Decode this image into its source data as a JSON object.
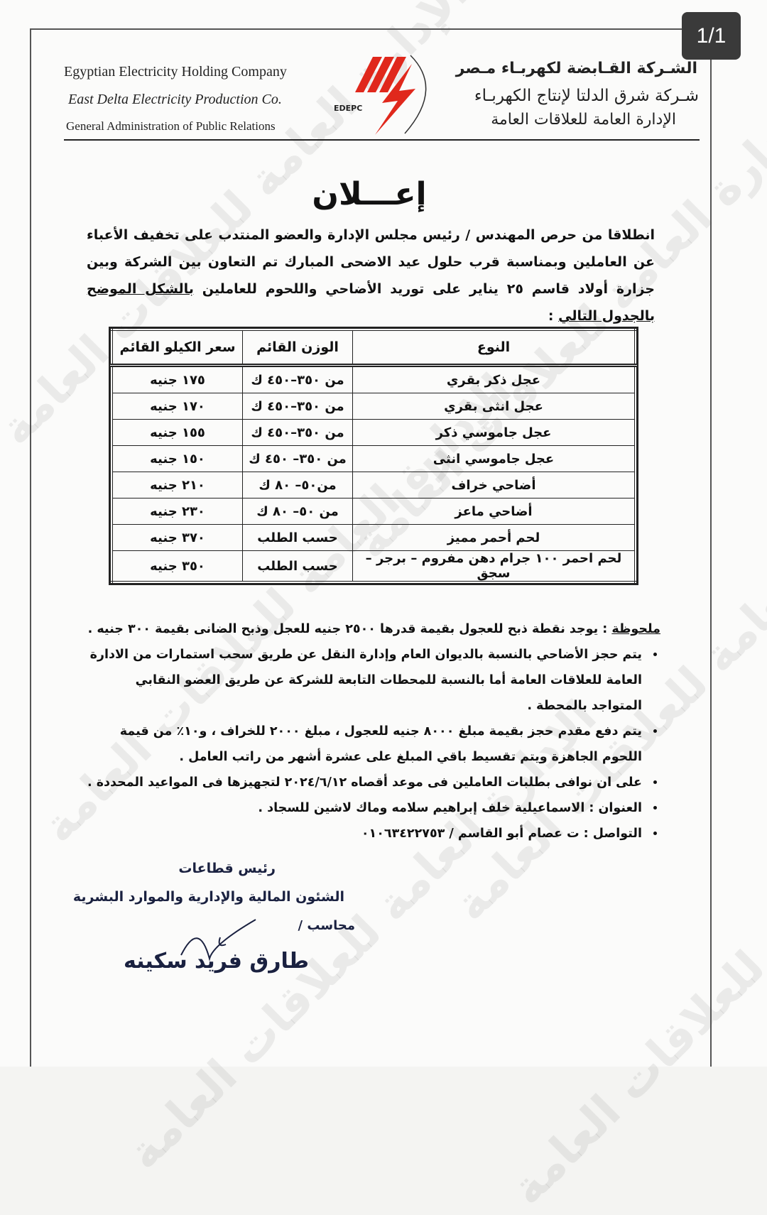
{
  "viewer": {
    "page_counter": "1/1"
  },
  "header": {
    "en_line1": "Egyptian Electricity Holding Company",
    "en_line2": "East Delta Electricity Production Co.",
    "en_line3": "General  Administration of Public Relations",
    "ar_line1": "الشـركة القـابضة لكهربـاء مـصر",
    "ar_line2": "شـركة شرق الدلتا لإنتاج الكهربـاء",
    "ar_line3": "الإدارة العامة للعلاقات العامة",
    "logo_text": "EDEPC",
    "logo_color": "#e0281c"
  },
  "title": "إعـــلان",
  "intro": {
    "text": "انطلاقا من حرص المهندس / رئيس مجلس الإدارة والعضو المنتدب على تخفيف الأعباء عن العاملين وبمناسبة قرب حلول عيد الاضحى المبارك تم التعاون بين الشركة وبين جزارة أولاد قاسم ٢٥ يناير على توريد الأضاحي واللحوم للعاملين ",
    "emphasis": "بالشكل الموضح بالجدول التالي",
    "end": " :"
  },
  "table": {
    "headers": [
      "النوع",
      "الوزن القائم",
      "سعر الكيلو القائم"
    ],
    "rows": [
      [
        "عجل ذكر بقري",
        "من ٣٥٠–٤٥٠ ك",
        "١٧٥ جنيه"
      ],
      [
        "عجل انثى بقري",
        "من ٣٥٠–٤٥٠ ك",
        "١٧٠ جنيه"
      ],
      [
        "عجل جاموسي ذكر",
        "من ٣٥٠–٤٥٠ ك",
        "١٥٥ جنيه"
      ],
      [
        "عجل جاموسي انثى",
        "من ٣٥٠– ٤٥٠ ك",
        "١٥٠ جنيه"
      ],
      [
        "أضاحي خراف",
        "من٥٠– ٨٠ ك",
        "٢١٠ جنيه"
      ],
      [
        "أضاحي ماعز",
        "من ٥٠– ٨٠ ك",
        "٢٣٠ جنيه"
      ],
      [
        "لحم أحمر مميز",
        "حسب الطلب",
        "٣٧٠ جنيه"
      ],
      [
        "لحم احمر ١٠٠ جرام دهن مفروم – برجر – سجق",
        "حسب الطلب",
        "٣٥٠ جنيه"
      ]
    ]
  },
  "notes": {
    "label": "ملحوظة",
    "note": " : يوجد نقطة ذبح للعجول بقيمة قدرها ٢٥٠٠ جنيه للعجل وذبح الضانى بقيمة ٣٠٠ جنيه .",
    "bullets": [
      "يتم حجز الأضاحي بالنسبة بالديوان العام وإدارة النقل عن طريق سحب استمارات من الادارة العامة للعلاقات العامة أما بالنسبة للمحطات التابعة للشركة عن طريق العضو النقابي المتواجد بالمحطة .",
      "يتم دفع مقدم حجز بقيمة مبلغ ٨٠٠٠ جنيه للعجول ، مبلغ ٢٠٠٠ للخراف ، و١٠٪ من قيمة اللحوم الجاهزة ويتم تقسيط باقي المبلغ على عشرة أشهر من راتب العامل .",
      "على ان نوافى بطلبات العاملين فى موعد أقصاه ٢٠٢٤/٦/١٢ لتجهيزها فى المواعيد المحددة .",
      "العنوان : الاسماعيلية خلف إبراهيم سلامه وماك لاشين للسجاد .",
      "التواصل : ت عصام أبو القاسم / ٠١٠٦٣٤٢٢٧٥٣"
    ]
  },
  "signature": {
    "title": "رئيس قطاعات",
    "department": "الشئون المالية والإدارية والموارد البشرية",
    "role": "محاسب /",
    "name": "طارق فريد سكينه"
  },
  "watermark": "الإدارة العامة للعلاقات العامة"
}
